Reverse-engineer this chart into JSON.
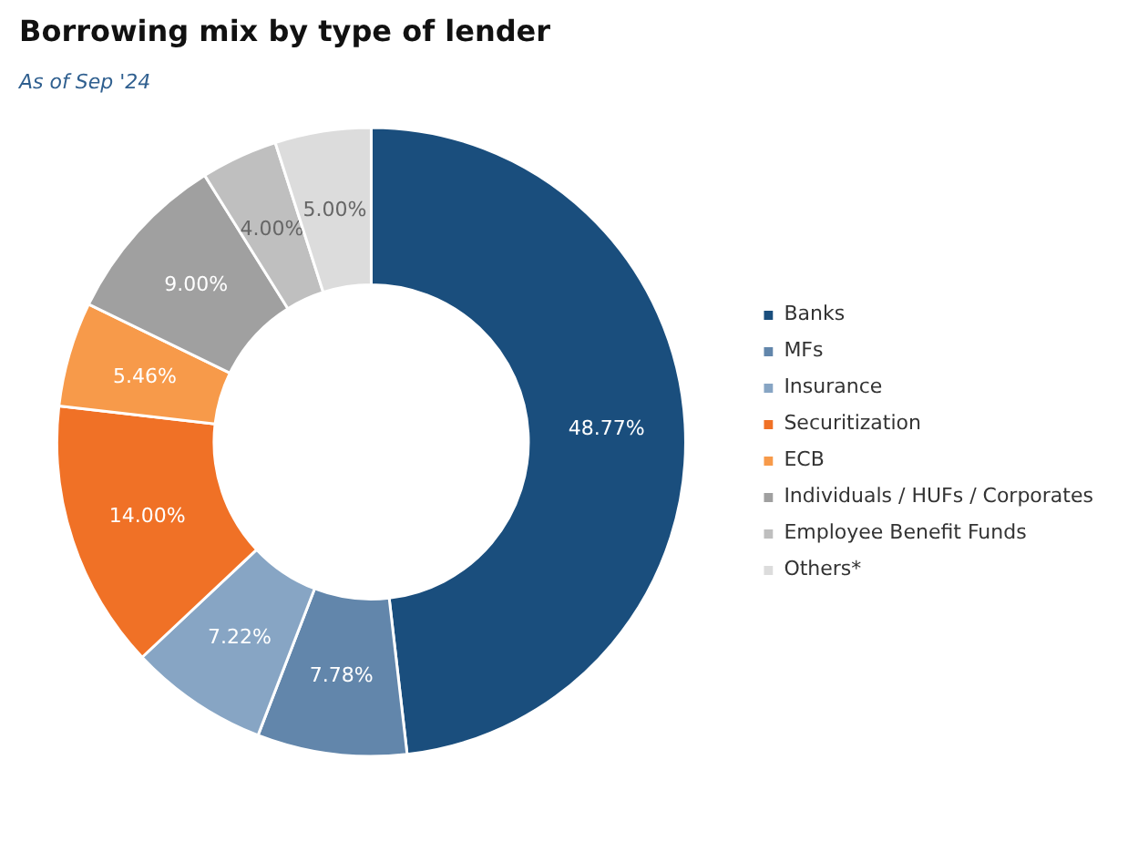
{
  "chart_data": {
    "type": "donut",
    "title": "Borrowing mix by type of lender",
    "subtitle": "As of Sep '24",
    "categories": [
      "Banks",
      "MFs",
      "Insurance",
      "Securitization",
      "ECB",
      "Individuals / HUFs / Corporates",
      "Employee Benefit Funds",
      "Others*"
    ],
    "values": [
      48.77,
      7.78,
      7.22,
      14.0,
      5.46,
      9.0,
      4.0,
      5.0
    ],
    "colors": [
      "#1a4e7d",
      "#6286ab",
      "#87a5c4",
      "#f07126",
      "#f79a4a",
      "#a0a0a0",
      "#bfbfbf",
      "#dcdcdc"
    ],
    "value_labels": [
      "48.77%",
      "7.78%",
      "7.22%",
      "14.00%",
      "5.46%",
      "9.00%",
      "4.00%",
      "5.00%"
    ],
    "legend": "right"
  }
}
